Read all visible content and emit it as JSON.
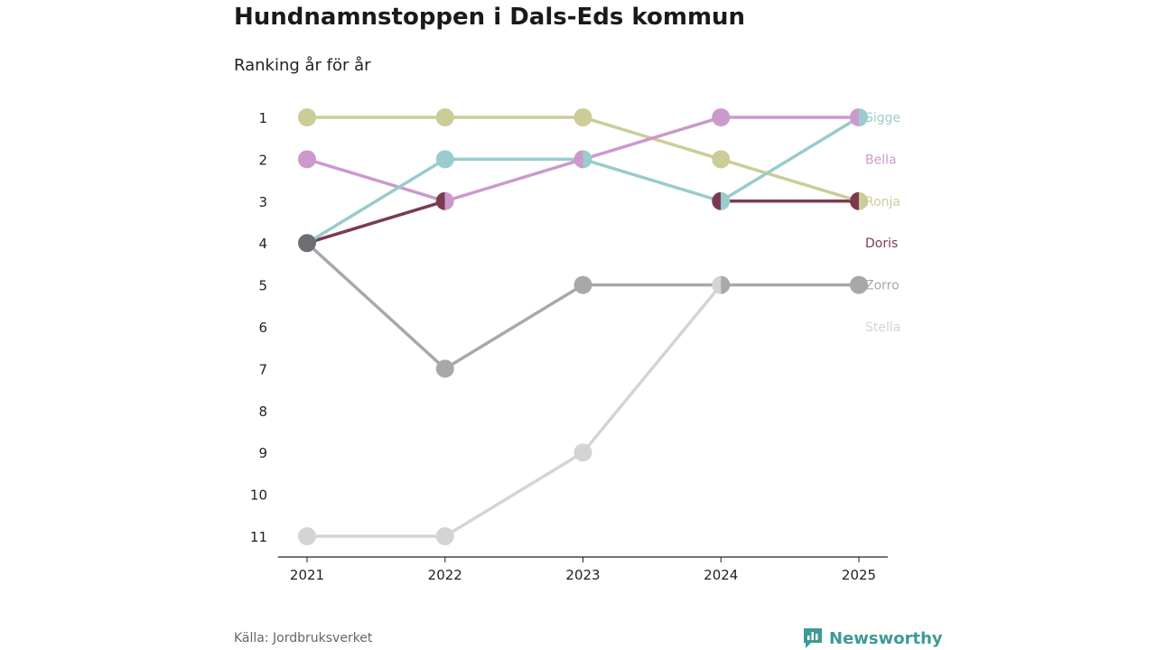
{
  "title": "Hundnamnstoppen i Dals-Eds kommun",
  "subtitle": "Ranking år för år",
  "source": "Källa: Jordbruksverket",
  "brand": {
    "name": "Newsworthy",
    "color": "#3d9a96"
  },
  "chart_data": {
    "type": "line",
    "x": [
      "2021",
      "2022",
      "2023",
      "2024",
      "2025"
    ],
    "ylim": [
      1,
      11
    ],
    "y_reversed": true,
    "y_ticks": [
      1,
      2,
      3,
      4,
      5,
      6,
      7,
      8,
      9,
      10,
      11
    ],
    "series": [
      {
        "name": "Stella",
        "color": "#d4d4d4",
        "values": [
          11,
          11,
          9,
          5,
          null
        ]
      },
      {
        "name": "Zorro",
        "color": "#a8a8a8",
        "values": [
          4,
          7,
          5,
          5,
          5
        ]
      },
      {
        "name": "Doris",
        "color": "#7a3b50",
        "values": [
          4,
          3,
          null,
          3,
          3
        ]
      },
      {
        "name": "Ronja",
        "color": "#cccc99",
        "values": [
          1,
          1,
          1,
          2,
          3
        ]
      },
      {
        "name": "Bella",
        "color": "#cc99cc",
        "values": [
          2,
          3,
          2,
          1,
          1
        ]
      },
      {
        "name": "Sigge",
        "color": "#99cccc",
        "values": [
          4,
          2,
          2,
          3,
          1
        ]
      }
    ],
    "grey_overlap_color": "#6e6e74"
  }
}
